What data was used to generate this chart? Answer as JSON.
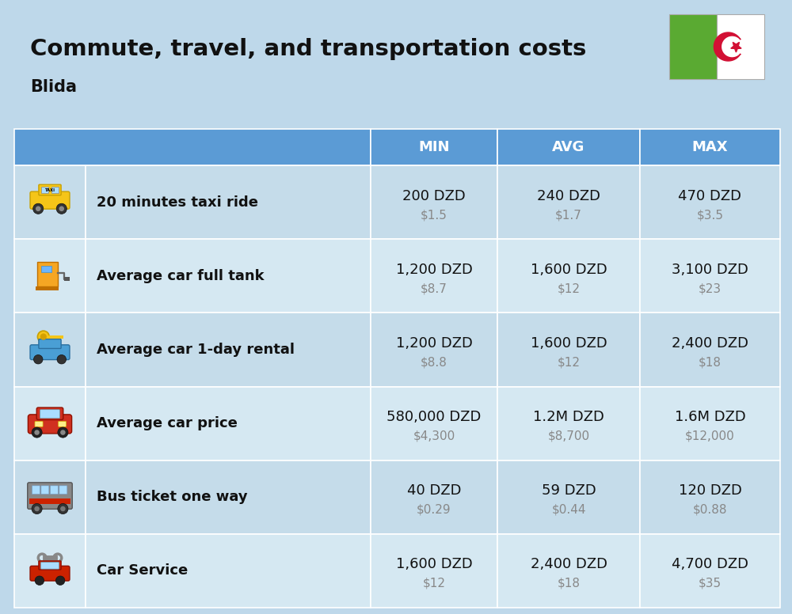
{
  "title": "Commute, travel, and transportation costs",
  "subtitle": "Blida",
  "bg_color": "#bed8ea",
  "header_bg": "#5b9bd5",
  "row_bg_odd": "#c5dcea",
  "row_bg_even": "#d5e8f2",
  "col_headers": [
    "MIN",
    "AVG",
    "MAX"
  ],
  "rows": [
    {
      "label": "20 minutes taxi ride",
      "min_dzd": "200 DZD",
      "min_usd": "$1.5",
      "avg_dzd": "240 DZD",
      "avg_usd": "$1.7",
      "max_dzd": "470 DZD",
      "max_usd": "$3.5"
    },
    {
      "label": "Average car full tank",
      "min_dzd": "1,200 DZD",
      "min_usd": "$8.7",
      "avg_dzd": "1,600 DZD",
      "avg_usd": "$12",
      "max_dzd": "3,100 DZD",
      "max_usd": "$23"
    },
    {
      "label": "Average car 1-day rental",
      "min_dzd": "1,200 DZD",
      "min_usd": "$8.8",
      "avg_dzd": "1,600 DZD",
      "avg_usd": "$12",
      "max_dzd": "2,400 DZD",
      "max_usd": "$18"
    },
    {
      "label": "Average car price",
      "min_dzd": "580,000 DZD",
      "min_usd": "$4,300",
      "avg_dzd": "1.2M DZD",
      "avg_usd": "$8,700",
      "max_dzd": "1.6M DZD",
      "max_usd": "$12,000"
    },
    {
      "label": "Bus ticket one way",
      "min_dzd": "40 DZD",
      "min_usd": "$0.29",
      "avg_dzd": "59 DZD",
      "avg_usd": "$0.44",
      "max_dzd": "120 DZD",
      "max_usd": "$0.88"
    },
    {
      "label": "Car Service",
      "min_dzd": "1,600 DZD",
      "min_usd": "$12",
      "avg_dzd": "2,400 DZD",
      "avg_usd": "$18",
      "max_dzd": "4,700 DZD",
      "max_usd": "$35"
    }
  ],
  "flag_green": "#5aaa32",
  "flag_white": "#ffffff",
  "flag_red": "#d21034",
  "title_fontsize": 21,
  "subtitle_fontsize": 15,
  "header_fontsize": 13,
  "label_fontsize": 13,
  "value_fontsize": 13,
  "usd_fontsize": 11
}
